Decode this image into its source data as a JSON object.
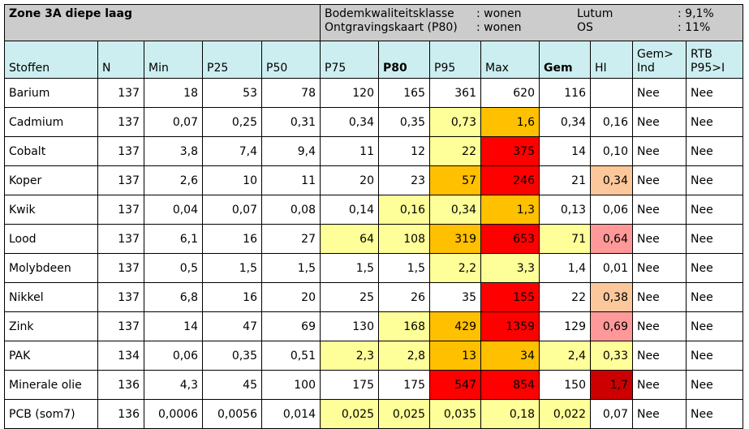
{
  "title": "Zone 3A diepe laag",
  "info": {
    "row1": {
      "label": "Bodemkwaliteitsklasse",
      "value": ": wonen",
      "param": "Lutum",
      "param_value": ": 9,1%"
    },
    "row2": {
      "label": "Ontgravingskaart (P80)",
      "value": ": wonen",
      "param": "OS",
      "param_value": ": 11%"
    }
  },
  "headers": [
    "Stoffen",
    "N",
    "Min",
    "P25",
    "P50",
    "P75",
    "P80",
    "P95",
    "Max",
    "Gem",
    "HI",
    "Gem>\nInd",
    "RTB\nP95>I"
  ],
  "colors": {
    "yellow": "#ffff99",
    "orange": "#ffc000",
    "red": "#ff0000",
    "dark_red": "#cc0000",
    "pink": "#ff9999",
    "peach": "#fcc89b",
    "header": "#cdeef0",
    "title": "#cccccc"
  },
  "rows": [
    {
      "name": "Barium",
      "N": "137",
      "Min": "18",
      "P25": "53",
      "P50": "78",
      "P75": "120",
      "P80": "165",
      "P95": "361",
      "Max": "620",
      "Gem": "116",
      "HI": "",
      "GemInd": "Nee",
      "RTB": "Nee"
    },
    {
      "name": "Cadmium",
      "N": "137",
      "Min": "0,07",
      "P25": "0,25",
      "P50": "0,31",
      "P75": "0,34",
      "P80": "0,35",
      "P95": "0,73",
      "Max": "1,6",
      "Gem": "0,34",
      "HI": "0,16",
      "GemInd": "Nee",
      "RTB": "Nee"
    },
    {
      "name": "Cobalt",
      "N": "137",
      "Min": "3,8",
      "P25": "7,4",
      "P50": "9,4",
      "P75": "11",
      "P80": "12",
      "P95": "22",
      "Max": "375",
      "Gem": "14",
      "HI": "0,10",
      "GemInd": "Nee",
      "RTB": "Nee"
    },
    {
      "name": "Koper",
      "N": "137",
      "Min": "2,6",
      "P25": "10",
      "P50": "11",
      "P75": "20",
      "P80": "23",
      "P95": "57",
      "Max": "246",
      "Gem": "21",
      "HI": "0,34",
      "GemInd": "Nee",
      "RTB": "Nee"
    },
    {
      "name": "Kwik",
      "N": "137",
      "Min": "0,04",
      "P25": "0,07",
      "P50": "0,08",
      "P75": "0,14",
      "P80": "0,16",
      "P95": "0,34",
      "Max": "1,3",
      "Gem": "0,13",
      "HI": "0,06",
      "GemInd": "Nee",
      "RTB": "Nee"
    },
    {
      "name": "Lood",
      "N": "137",
      "Min": "6,1",
      "P25": "16",
      "P50": "27",
      "P75": "64",
      "P80": "108",
      "P95": "319",
      "Max": "653",
      "Gem": "71",
      "HI": "0,64",
      "GemInd": "Nee",
      "RTB": "Nee"
    },
    {
      "name": "Molybdeen",
      "N": "137",
      "Min": "0,5",
      "P25": "1,5",
      "P50": "1,5",
      "P75": "1,5",
      "P80": "1,5",
      "P95": "2,2",
      "Max": "3,3",
      "Gem": "1,4",
      "HI": "0,01",
      "GemInd": "Nee",
      "RTB": "Nee"
    },
    {
      "name": "Nikkel",
      "N": "137",
      "Min": "6,8",
      "P25": "16",
      "P50": "20",
      "P75": "25",
      "P80": "26",
      "P95": "35",
      "Max": "155",
      "Gem": "22",
      "HI": "0,38",
      "GemInd": "Nee",
      "RTB": "Nee"
    },
    {
      "name": "Zink",
      "N": "137",
      "Min": "14",
      "P25": "47",
      "P50": "69",
      "P75": "130",
      "P80": "168",
      "P95": "429",
      "Max": "1359",
      "Gem": "129",
      "HI": "0,69",
      "GemInd": "Nee",
      "RTB": "Nee"
    },
    {
      "name": "PAK",
      "N": "134",
      "Min": "0,06",
      "P25": "0,35",
      "P50": "0,51",
      "P75": "2,3",
      "P80": "2,8",
      "P95": "13",
      "Max": "34",
      "Gem": "2,4",
      "HI": "0,33",
      "GemInd": "Nee",
      "RTB": "Nee"
    },
    {
      "name": "Minerale olie",
      "N": "136",
      "Min": "4,3",
      "P25": "45",
      "P50": "100",
      "P75": "175",
      "P80": "175",
      "P95": "547",
      "Max": "854",
      "Gem": "150",
      "HI": "1,7",
      "GemInd": "Nee",
      "RTB": "Nee"
    },
    {
      "name": "PCB (som7)",
      "N": "136",
      "Min": "0,0006",
      "P25": "0,0056",
      "P50": "0,014",
      "P75": "0,025",
      "P80": "0,025",
      "P95": "0,035",
      "Max": "0,18",
      "Gem": "0,022",
      "HI": "0,07",
      "GemInd": "Nee",
      "RTB": "Nee"
    }
  ]
}
